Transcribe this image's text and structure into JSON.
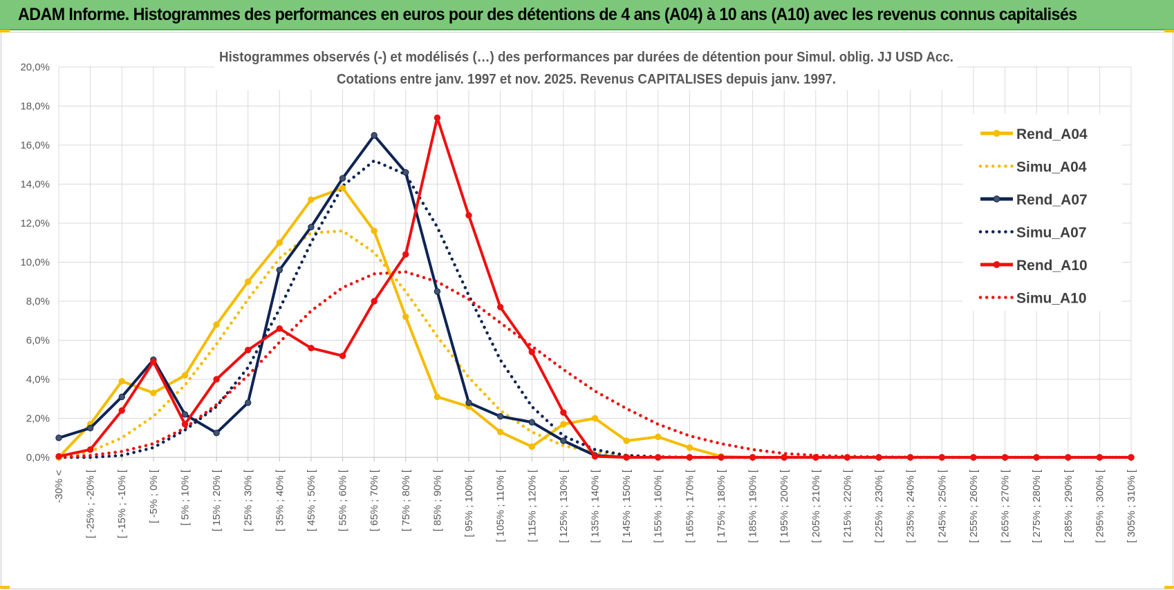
{
  "banner": {
    "title": "ADAM Informe. Histogrammes des performances en euros pour des détentions de 4 ans (A04) à 10 ans (A10) avec les revenus connus capitalisés"
  },
  "colors": {
    "banner": "#7dc77a",
    "A04": "#f5bc00",
    "A07": "#0e2454",
    "A10": "#ee1010",
    "grid": "#d9d9d9"
  },
  "chart_data": {
    "type": "line",
    "subtitle_line1": "Histogrammes observés (-)  et modélisés (…) des performances par durées de détention pour Simul. oblig. JJ USD Acc.",
    "subtitle_line2": "Cotations entre janv. 1997 et nov. 2025. Revenus CAPITALISES depuis janv. 1997.",
    "ylim": [
      0,
      20
    ],
    "yticks": [
      "0,0%",
      "2,0%",
      "4,0%",
      "6,0%",
      "8,0%",
      "10,0%",
      "12,0%",
      "14,0%",
      "16,0%",
      "18,0%",
      "20,0%"
    ],
    "grid": true,
    "legend_position": "right",
    "x_labels": [
      "-30% <",
      "[ -25% ; -20% [",
      "[ -15% ; -10% [",
      "[ -5% ; 0% [",
      "[ 5% ; 10% [",
      "[ 15% ; 20% [",
      "[ 25% ; 30% [",
      "[ 35% ; 40% [",
      "[ 45% ; 50% [",
      "[ 55% ; 60% [",
      "[ 65% ; 70% [",
      "[ 75% ; 80% [",
      "[ 85% ; 90% [",
      "[ 95% ; 100% [",
      "[ 105% ; 110% [",
      "[ 115% ; 120% [",
      "[ 125% ; 130% [",
      "[ 135% ; 140% [",
      "[ 145% ; 150% [",
      "[ 155% ; 160% [",
      "[ 165% ; 170% [",
      "[ 175% ; 180% [",
      "[ 185% ; 190% [",
      "[ 195% ; 200% [",
      "[ 205% ; 210% [",
      "[ 215% ; 220% [",
      "[ 225% ; 230% [",
      "[ 235% ; 240% [",
      "[ 245% ; 250% [",
      "[ 255% ; 260% [",
      "[ 265% ; 270% [",
      "[ 275% ; 280% [",
      "[ 285% ; 290% [",
      "[ 295% ; 300% [",
      "[ 305% ; 310% ["
    ],
    "series": [
      {
        "name": "Rend_A04",
        "key": "A04",
        "style": "solid",
        "markers": true,
        "values": [
          0,
          1.7,
          3.9,
          3.3,
          4.2,
          6.8,
          9.0,
          11.0,
          13.2,
          13.8,
          11.6,
          7.2,
          3.1,
          2.6,
          1.3,
          0.55,
          1.7,
          2.0,
          0.85,
          1.05,
          0.5,
          0.05
        ]
      },
      {
        "name": "Simu_A04",
        "key": "A04",
        "style": "dotted",
        "markers": false,
        "values": [
          0.0,
          0.3,
          1.0,
          2.1,
          3.7,
          5.8,
          8.1,
          10.2,
          11.5,
          11.6,
          10.5,
          8.5,
          6.2,
          4.1,
          2.4,
          1.3,
          0.6,
          0.25,
          0.08,
          0.02,
          0,
          0
        ]
      },
      {
        "name": "Rend_A07",
        "key": "A07",
        "style": "solid",
        "markers": true,
        "values": [
          1.0,
          1.5,
          3.1,
          5.0,
          2.2,
          1.25,
          2.8,
          9.6,
          11.8,
          14.3,
          16.5,
          14.6,
          8.5,
          2.8,
          2.1,
          1.8,
          0.85,
          0.1,
          0,
          0
        ]
      },
      {
        "name": "Simu_A07",
        "key": "A07",
        "style": "dotted",
        "markers": false,
        "values": [
          0,
          0,
          0.1,
          0.5,
          1.4,
          2.6,
          4.6,
          7.6,
          11.0,
          13.9,
          15.2,
          14.5,
          11.8,
          8.3,
          5.0,
          2.6,
          1.1,
          0.4,
          0.1,
          0.03,
          0
        ]
      },
      {
        "name": "Rend_A10",
        "key": "A10",
        "style": "solid",
        "markers": true,
        "values": [
          0.05,
          0.4,
          2.4,
          4.9,
          1.7,
          4.0,
          5.5,
          6.6,
          5.6,
          5.2,
          8.0,
          10.4,
          17.4,
          12.4,
          7.7,
          5.4,
          2.3,
          0.05
        ]
      },
      {
        "name": "Simu_A10",
        "key": "A10",
        "style": "dotted",
        "markers": false,
        "values": [
          0,
          0.1,
          0.3,
          0.7,
          1.5,
          2.7,
          4.2,
          5.9,
          7.5,
          8.7,
          9.4,
          9.5,
          9.0,
          8.1,
          6.9,
          5.7,
          4.5,
          3.4,
          2.5,
          1.7,
          1.1,
          0.7,
          0.4,
          0.2,
          0.1,
          0.05,
          0.02,
          0.01,
          0
        ]
      }
    ]
  }
}
